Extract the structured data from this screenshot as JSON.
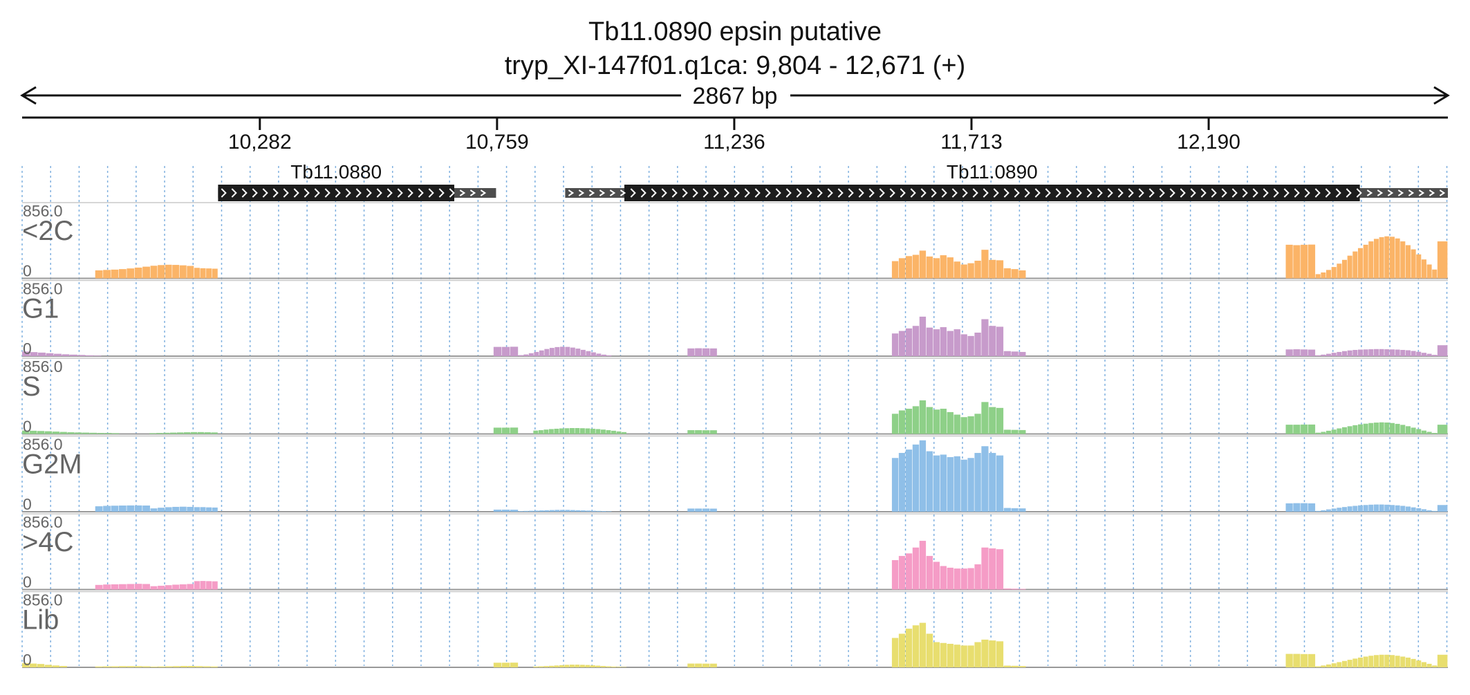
{
  "header": {
    "title": "Tb11.0890  epsin  putative",
    "subtitle": "tryp_XI-147f01.q1ca: 9,804 - 12,671 (+)",
    "span_label": "2867 bp"
  },
  "colors": {
    "orange": "#fbb467",
    "purple": "#c79bcb",
    "green": "#8ed088",
    "blue": "#8fbfe8",
    "pink": "#f59cc6",
    "yellow": "#e8de6f",
    "gene_box": "#1c1c1c",
    "utr": "#4d4d4d",
    "grid": "#7fb0df",
    "label": "#666666"
  },
  "chart_data": {
    "type": "bar",
    "region": {
      "start": 9804,
      "end": 12671
    },
    "x_ticks": [
      {
        "pos": 10282,
        "label": "10,282"
      },
      {
        "pos": 10759,
        "label": "10,759"
      },
      {
        "pos": 11236,
        "label": "11,236"
      },
      {
        "pos": 11713,
        "label": "11,713"
      },
      {
        "pos": 12190,
        "label": "12,190"
      }
    ],
    "genes": [
      {
        "name": "Tb11.0880",
        "start": 10198,
        "end": 10757,
        "cds_start": 10198,
        "cds_end": 10673
      },
      {
        "name": "Tb11.0890",
        "start": 10896,
        "end": 12671,
        "cds_start": 11015,
        "cds_end": 12494
      }
    ],
    "bin_size": 15,
    "y_max_label": "856.0",
    "y_min_label": "0",
    "y_max": 856,
    "tracks": [
      {
        "name": "<2C",
        "color_key": "orange",
        "segments": [
          {
            "start": 9951,
            "end": 10062,
            "values": [
              95,
              100,
              104,
              110,
              118,
              128,
              139
            ]
          },
          {
            "start": 10062,
            "end": 10150,
            "values": [
              150,
              158,
              162,
              160,
              155,
              148
            ]
          },
          {
            "start": 10150,
            "end": 10198,
            "values": [
              125,
              120,
              118,
              115
            ]
          },
          {
            "start": 11553,
            "end": 11733,
            "values": [
              205,
              240,
              265,
              280,
              330,
              260,
              240,
              275,
              250,
              200,
              165,
              180,
              210
            ]
          },
          {
            "start": 11733,
            "end": 11778,
            "values": [
              340,
              220,
              215
            ]
          },
          {
            "start": 11778,
            "end": 11823,
            "values": [
              120,
              110,
              95
            ]
          },
          {
            "start": 12345,
            "end": 12405,
            "values": [
              400,
              395,
              400,
              402
            ]
          },
          {
            "start": 12405,
            "end": 12650,
            "values": [
              50,
              70,
              100,
              135,
              175,
              220,
              270,
              320,
              360,
              400,
              440,
              470,
              490,
              500,
              495,
              475,
              440,
              395,
              345,
              285,
              225,
              165,
              105
            ]
          },
          {
            "start": 12650,
            "end": 12671,
            "values": [
              440
            ]
          }
        ]
      },
      {
        "name": "G1",
        "color_key": "purple",
        "segments": [
          {
            "start": 9804,
            "end": 9964,
            "values": [
              55,
              48,
              42,
              35,
              28,
              22,
              18,
              14,
              10,
              6
            ]
          },
          {
            "start": 10752,
            "end": 10802,
            "values": [
              110,
              110,
              112
            ]
          },
          {
            "start": 10802,
            "end": 10990,
            "values": [
              12,
              20,
              35,
              50,
              68,
              85,
              98,
              108,
              112,
              110,
              102,
              90,
              75,
              60,
              45,
              30,
              18,
              10
            ]
          },
          {
            "start": 11142,
            "end": 11202,
            "values": [
              92,
              94,
              93,
              92
            ]
          },
          {
            "start": 11553,
            "end": 11733,
            "values": [
              270,
              300,
              330,
              360,
              470,
              340,
              320,
              345,
              300,
              320,
              260,
              240,
              280
            ]
          },
          {
            "start": 11733,
            "end": 11778,
            "values": [
              440,
              360,
              350
            ]
          },
          {
            "start": 11778,
            "end": 11823,
            "values": [
              60,
              55,
              50
            ]
          },
          {
            "start": 12345,
            "end": 12405,
            "values": [
              80,
              82,
              80,
              78
            ]
          },
          {
            "start": 12405,
            "end": 12650,
            "values": [
              10,
              18,
              28,
              40,
              50,
              60,
              68,
              74,
              78,
              80,
              82,
              84,
              84,
              82,
              80,
              78,
              74,
              70,
              62,
              52,
              40,
              28,
              15
            ]
          },
          {
            "start": 12650,
            "end": 12671,
            "values": [
              130
            ]
          }
        ]
      },
      {
        "name": "S",
        "color_key": "green",
        "segments": [
          {
            "start": 9804,
            "end": 9895,
            "values": [
              40,
              38,
              35,
              32,
              28,
              24
            ]
          },
          {
            "start": 9895,
            "end": 10000,
            "values": [
              20,
              18,
              16,
              14,
              12,
              12,
              10
            ]
          },
          {
            "start": 10060,
            "end": 10198,
            "values": [
              10,
              12,
              14,
              16,
              18,
              20,
              22,
              22,
              20,
              18
            ]
          },
          {
            "start": 10752,
            "end": 10802,
            "values": [
              75,
              75,
              76
            ]
          },
          {
            "start": 10832,
            "end": 11020,
            "values": [
              40,
              45,
              52,
              58,
              62,
              66,
              68,
              70,
              70,
              68,
              66,
              62,
              58,
              52,
              45,
              38,
              30,
              22
            ]
          },
          {
            "start": 11142,
            "end": 11202,
            "values": [
              45,
              45,
              44,
              44
            ]
          },
          {
            "start": 11553,
            "end": 11733,
            "values": [
              240,
              280,
              300,
              330,
              400,
              320,
              290,
              300,
              260,
              230,
              200,
              210,
              240
            ]
          },
          {
            "start": 11733,
            "end": 11778,
            "values": [
              380,
              320,
              310
            ]
          },
          {
            "start": 11778,
            "end": 11823,
            "values": [
              50,
              48,
              46
            ]
          },
          {
            "start": 12345,
            "end": 12405,
            "values": [
              110,
              110,
              112,
              112
            ]
          },
          {
            "start": 12405,
            "end": 12650,
            "values": [
              15,
              25,
              38,
              52,
              66,
              80,
              92,
              104,
              114,
              122,
              130,
              135,
              138,
              136,
              130,
              120,
              108,
              92,
              75,
              58,
              40,
              25,
              12
            ]
          },
          {
            "start": 12650,
            "end": 12671,
            "values": [
              110
            ]
          }
        ]
      },
      {
        "name": "G2M",
        "color_key": "blue",
        "segments": [
          {
            "start": 9951,
            "end": 10062,
            "values": [
              65,
              70,
              72,
              74,
              75,
              75,
              74
            ]
          },
          {
            "start": 10062,
            "end": 10150,
            "values": [
              40,
              48,
              54,
              58,
              60,
              58
            ]
          },
          {
            "start": 10150,
            "end": 10198,
            "values": [
              55,
              55,
              52,
              50
            ]
          },
          {
            "start": 10752,
            "end": 10802,
            "values": [
              25,
              25,
              24
            ]
          },
          {
            "start": 10802,
            "end": 10990,
            "values": [
              8,
              10,
              12,
              14,
              16,
              18,
              20,
              22,
              22,
              22,
              20,
              18,
              16,
              14,
              12,
              10,
              8,
              6
            ]
          },
          {
            "start": 11142,
            "end": 11202,
            "values": [
              38,
              38,
              38,
              37
            ]
          },
          {
            "start": 11553,
            "end": 11733,
            "values": [
              640,
              700,
              740,
              800,
              850,
              720,
              670,
              680,
              650,
              660,
              620,
              640,
              700
            ]
          },
          {
            "start": 11733,
            "end": 11778,
            "values": [
              780,
              700,
              670
            ]
          },
          {
            "start": 11778,
            "end": 11823,
            "values": [
              45,
              42,
              40
            ]
          },
          {
            "start": 12345,
            "end": 12405,
            "values": [
              100,
              102,
              102,
              100
            ]
          },
          {
            "start": 12405,
            "end": 12650,
            "values": [
              10,
              18,
              28,
              38,
              48,
              56,
              64,
              70,
              76,
              80,
              84,
              86,
              86,
              84,
              80,
              76,
              70,
              62,
              52,
              42,
              30,
              18,
              10
            ]
          },
          {
            "start": 12650,
            "end": 12671,
            "values": [
              80
            ]
          }
        ]
      },
      {
        "name": ">4C",
        "color_key": "pink",
        "segments": [
          {
            "start": 9951,
            "end": 10062,
            "values": [
              55,
              60,
              62,
              64,
              66,
              68,
              66
            ]
          },
          {
            "start": 10062,
            "end": 10150,
            "values": [
              40,
              45,
              52,
              58,
              62,
              66
            ]
          },
          {
            "start": 10150,
            "end": 10198,
            "values": [
              100,
              102,
              100,
              98
            ]
          },
          {
            "start": 11553,
            "end": 11733,
            "values": [
              350,
              400,
              430,
              500,
              580,
              400,
              330,
              280,
              260,
              250,
              250,
              255,
              300
            ]
          },
          {
            "start": 11733,
            "end": 11778,
            "values": [
              500,
              490,
              480
            ]
          },
          {
            "start": 11778,
            "end": 11823,
            "values": [
              12,
              10,
              8
            ]
          }
        ]
      },
      {
        "name": "Lib",
        "color_key": "yellow",
        "segments": [
          {
            "start": 9804,
            "end": 9895,
            "values": [
              50,
              45,
              40,
              30,
              22,
              16
            ]
          },
          {
            "start": 9951,
            "end": 10062,
            "values": [
              10,
              12,
              12,
              14,
              14,
              14,
              12
            ]
          },
          {
            "start": 10062,
            "end": 10198,
            "values": [
              8,
              10,
              12,
              14,
              16,
              16,
              14,
              12,
              10
            ]
          },
          {
            "start": 10752,
            "end": 10802,
            "values": [
              55,
              55,
              56
            ]
          },
          {
            "start": 10832,
            "end": 11020,
            "values": [
              10,
              12,
              15,
              18,
              22,
              26,
              30,
              32,
              32,
              30,
              28,
              24,
              20,
              16,
              12,
              9,
              6,
              4
            ]
          },
          {
            "start": 11142,
            "end": 11202,
            "values": [
              45,
              45,
              44,
              44
            ]
          },
          {
            "start": 11553,
            "end": 11733,
            "values": [
              350,
              400,
              460,
              500,
              530,
              400,
              300,
              290,
              280,
              270,
              260,
              260,
              300
            ]
          },
          {
            "start": 11733,
            "end": 11778,
            "values": [
              330,
              320,
              310
            ]
          },
          {
            "start": 11778,
            "end": 11823,
            "values": [
              20,
              18,
              15
            ]
          },
          {
            "start": 12345,
            "end": 12405,
            "values": [
              160,
              160,
              158,
              158
            ]
          },
          {
            "start": 12405,
            "end": 12650,
            "values": [
              12,
              22,
              34,
              48,
              62,
              76,
              90,
              104,
              116,
              128,
              138,
              146,
              150,
              150,
              146,
              138,
              128,
              116,
              100,
              82,
              62,
              42,
              22
            ]
          },
          {
            "start": 12650,
            "end": 12671,
            "values": [
              150
            ]
          }
        ]
      }
    ]
  }
}
